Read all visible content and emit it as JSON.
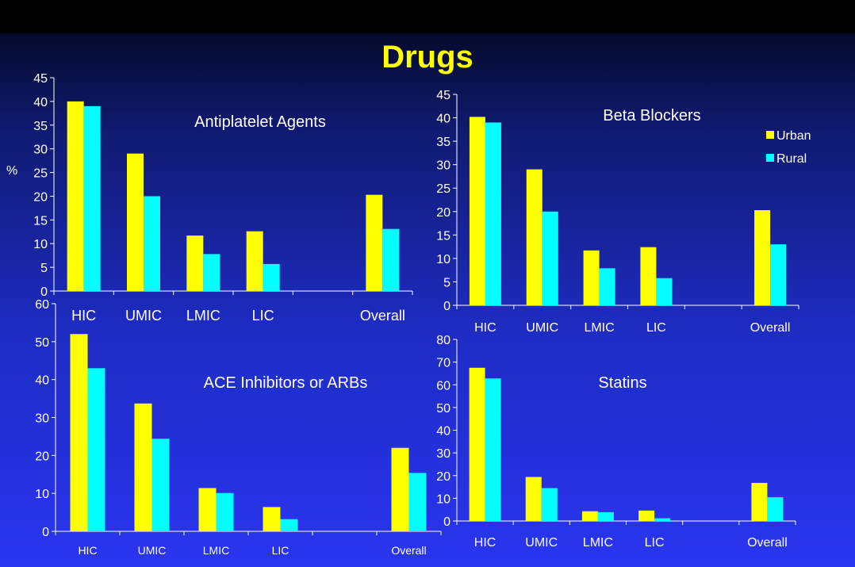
{
  "slide": {
    "title": "Drugs"
  },
  "colors": {
    "urban": "#ffff00",
    "rural": "#00ffff",
    "axis": "#ffffff",
    "title": "#ffff00"
  },
  "chart_data": [
    {
      "type": "bar",
      "title": "Antiplatelet Agents",
      "ylabel": "%",
      "ylim": [
        0,
        45
      ],
      "yticks": [
        0,
        5,
        10,
        15,
        20,
        25,
        30,
        35,
        40,
        45
      ],
      "categories": [
        "HIC",
        "UMIC",
        "LMIC",
        "LIC",
        "",
        "Overall"
      ],
      "series": [
        {
          "name": "Urban",
          "values": [
            40,
            29,
            11.7,
            12.6,
            null,
            20.3
          ]
        },
        {
          "name": "Rural",
          "values": [
            39,
            20,
            7.8,
            5.7,
            null,
            13.1
          ]
        }
      ]
    },
    {
      "type": "bar",
      "title": "Beta Blockers",
      "ylim": [
        0,
        45
      ],
      "yticks": [
        0,
        5,
        10,
        15,
        20,
        25,
        30,
        35,
        40,
        45
      ],
      "legend": "top-right",
      "categories": [
        "HIC",
        "UMIC",
        "LMIC",
        "LIC",
        "",
        "Overall"
      ],
      "series": [
        {
          "name": "Urban",
          "values": [
            40.2,
            29,
            11.7,
            12.4,
            null,
            20.3
          ]
        },
        {
          "name": "Rural",
          "values": [
            39,
            20,
            7.9,
            5.8,
            null,
            13
          ]
        }
      ]
    },
    {
      "type": "bar",
      "title": "ACE Inhibitors or ARBs",
      "ylim": [
        0,
        60
      ],
      "yticks": [
        0,
        10,
        20,
        30,
        40,
        50,
        60
      ],
      "categories": [
        "HIC",
        "UMIC",
        "LMIC",
        "LIC",
        "",
        "Overall"
      ],
      "series": [
        {
          "name": "Urban",
          "values": [
            52,
            33.7,
            11.4,
            6.4,
            null,
            22
          ]
        },
        {
          "name": "Rural",
          "values": [
            43,
            24.4,
            10.1,
            3.2,
            null,
            15.4
          ]
        }
      ]
    },
    {
      "type": "bar",
      "title": "Statins",
      "ylim": [
        0,
        80
      ],
      "yticks": [
        0,
        10,
        20,
        30,
        40,
        50,
        60,
        70,
        80
      ],
      "categories": [
        "HIC",
        "UMIC",
        "LMIC",
        "LIC",
        "",
        "Overall"
      ],
      "series": [
        {
          "name": "Urban",
          "values": [
            67.5,
            19.4,
            4.3,
            4.6,
            null,
            16.8
          ]
        },
        {
          "name": "Rural",
          "values": [
            62.8,
            14.5,
            3.9,
            1.2,
            null,
            10.5
          ]
        }
      ]
    }
  ]
}
